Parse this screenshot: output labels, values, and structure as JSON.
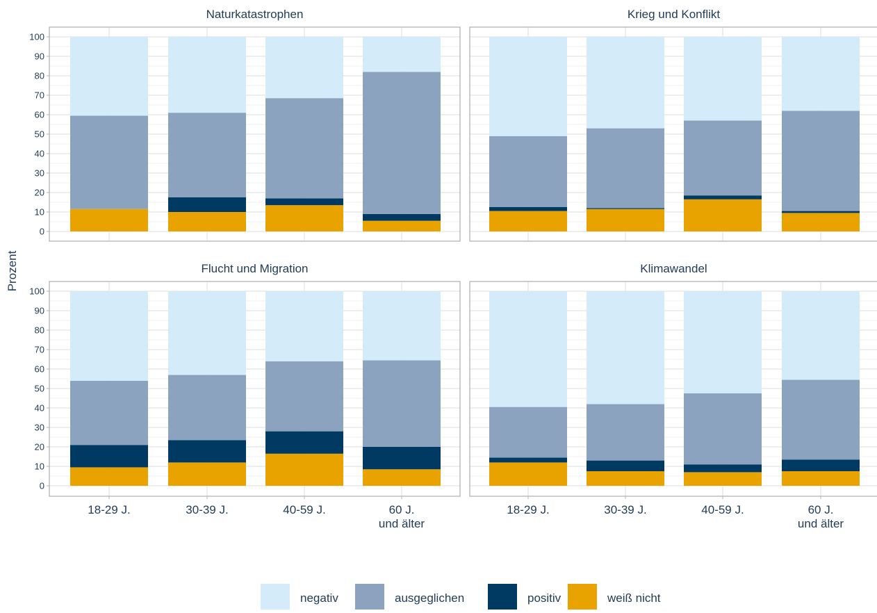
{
  "chart_data": {
    "type": "bar",
    "stacked": true,
    "ylabel": "Prozent",
    "xlabel": "",
    "ylim": [
      0,
      100
    ],
    "yticks": [
      0,
      10,
      20,
      30,
      40,
      50,
      60,
      70,
      80,
      90,
      100
    ],
    "grid": true,
    "legend_placement": "bottom",
    "categories": [
      [
        "18-29 J."
      ],
      [
        "30-39 J."
      ],
      [
        "40-59 J."
      ],
      [
        "60 J.",
        "und älter"
      ]
    ],
    "stack_order": [
      "weiß nicht",
      "positiv",
      "ausgeglichen",
      "negativ"
    ],
    "legend_order": [
      "negativ",
      "ausgeglichen",
      "positiv",
      "weiß nicht"
    ],
    "colors": {
      "negativ": "#d4ebf9",
      "ausgeglichen": "#8ba3bf",
      "positiv": "#003a63",
      "weiß nicht": "#e8a300"
    },
    "panels": [
      {
        "title": "Naturkatastrophen",
        "series": [
          {
            "name": "weiß nicht",
            "values": [
              11.5,
              10,
              13.5,
              5.5
            ]
          },
          {
            "name": "positiv",
            "values": [
              0,
              7.5,
              3.5,
              3.5
            ]
          },
          {
            "name": "ausgeglichen",
            "values": [
              48,
              43.5,
              51.5,
              73
            ]
          },
          {
            "name": "negativ",
            "values": [
              40.5,
              39,
              31.5,
              18
            ]
          }
        ]
      },
      {
        "title": "Krieg und Konflikt",
        "series": [
          {
            "name": "weiß nicht",
            "values": [
              10.5,
              11.5,
              16.5,
              9.5
            ]
          },
          {
            "name": "positiv",
            "values": [
              2,
              0.5,
              2,
              1
            ]
          },
          {
            "name": "ausgeglichen",
            "values": [
              36.5,
              41,
              38.5,
              51.5
            ]
          },
          {
            "name": "negativ",
            "values": [
              51,
              47,
              43,
              38
            ]
          }
        ]
      },
      {
        "title": "Flucht und Migration",
        "series": [
          {
            "name": "weiß nicht",
            "values": [
              9.5,
              12,
              16.5,
              8.5
            ]
          },
          {
            "name": "positiv",
            "values": [
              11.5,
              11.5,
              11.5,
              11.5
            ]
          },
          {
            "name": "ausgeglichen",
            "values": [
              33,
              33.5,
              36,
              44.5
            ]
          },
          {
            "name": "negativ",
            "values": [
              46,
              43,
              36,
              35.5
            ]
          }
        ]
      },
      {
        "title": "Klimawandel",
        "series": [
          {
            "name": "weiß nicht",
            "values": [
              12,
              7.5,
              7,
              7.5
            ]
          },
          {
            "name": "positiv",
            "values": [
              2.5,
              5.5,
              4,
              6
            ]
          },
          {
            "name": "ausgeglichen",
            "values": [
              26,
              29,
              36.5,
              41
            ]
          },
          {
            "name": "negativ",
            "values": [
              59.5,
              58,
              52.5,
              45.5
            ]
          }
        ]
      }
    ]
  }
}
